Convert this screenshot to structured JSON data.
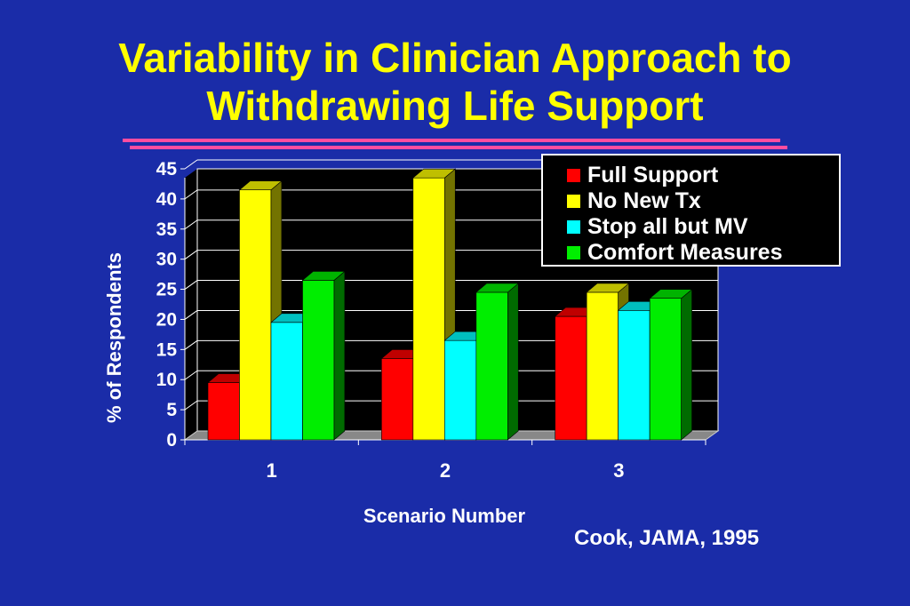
{
  "slide": {
    "title_line1": "Variability in Clinician Approach to",
    "title_line2": "Withdrawing Life Support",
    "credit": "Cook, JAMA, 1995",
    "background_color": "#1a2ca8",
    "title_color": "#ffff00",
    "rule_color": "#ff4da0"
  },
  "chart_data": {
    "type": "bar",
    "style": "3d",
    "title": "",
    "xlabel": "Scenario Number",
    "ylabel": "% of Respondents",
    "ylim": [
      0,
      45
    ],
    "yticks": [
      "0",
      "5",
      "10",
      "15",
      "20",
      "25",
      "30",
      "35",
      "40",
      "45"
    ],
    "categories": [
      "1",
      "2",
      "3"
    ],
    "grid": true,
    "legend_position": "top-right",
    "series": [
      {
        "name": "Full Support",
        "color": "#ff0000",
        "values": [
          9.5,
          13.5,
          20.5
        ]
      },
      {
        "name": "No New Tx",
        "color": "#ffff00",
        "values": [
          41.5,
          43.5,
          24.5
        ]
      },
      {
        "name": "Stop all but MV",
        "color": "#00ffff",
        "values": [
          19.5,
          16.5,
          21.5
        ]
      },
      {
        "name": "Comfort Measures",
        "color": "#00ee00",
        "values": [
          26.5,
          24.5,
          23.5
        ]
      }
    ]
  }
}
